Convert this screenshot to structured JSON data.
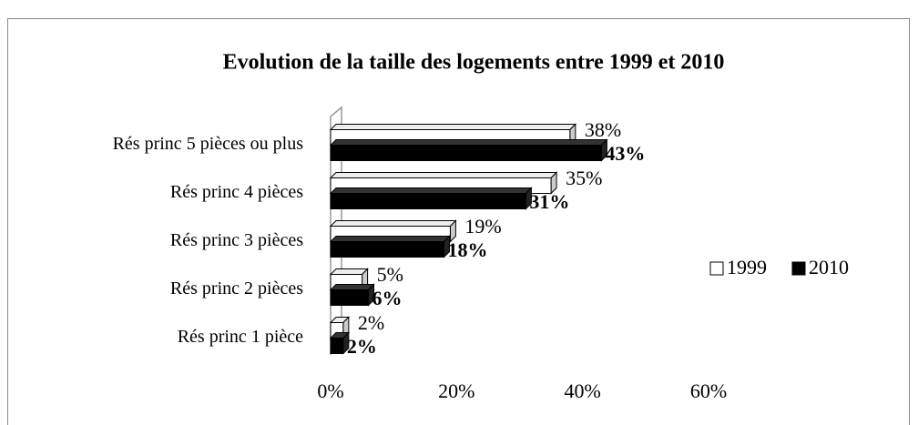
{
  "chart_data": {
    "type": "bar",
    "orientation": "horizontal",
    "title": "Evolution de la taille des logements entre 1999 et 2010",
    "categories": [
      "Rés princ 5 pièces ou plus",
      "Rés princ 4 pièces",
      "Rés princ 3 pièces",
      "Rés princ 2 pièces",
      "Rés princ 1 pièce"
    ],
    "series": [
      {
        "name": "1999",
        "color": "#ffffff",
        "values": [
          38,
          35,
          19,
          5,
          2
        ],
        "value_labels": [
          "38%",
          "35%",
          "19%",
          "5%",
          "2%"
        ]
      },
      {
        "name": "2010",
        "color": "#000000",
        "values": [
          43,
          31,
          18,
          6,
          2
        ],
        "value_labels": [
          "43%",
          "31%",
          "18%",
          "6%",
          "2%"
        ]
      }
    ],
    "xlim": [
      0,
      60
    ],
    "xticks": [
      {
        "value": 0,
        "label": "0%"
      },
      {
        "value": 20,
        "label": "20%"
      },
      {
        "value": 40,
        "label": "40%"
      },
      {
        "value": 60,
        "label": "60%"
      }
    ],
    "legend": "right"
  }
}
